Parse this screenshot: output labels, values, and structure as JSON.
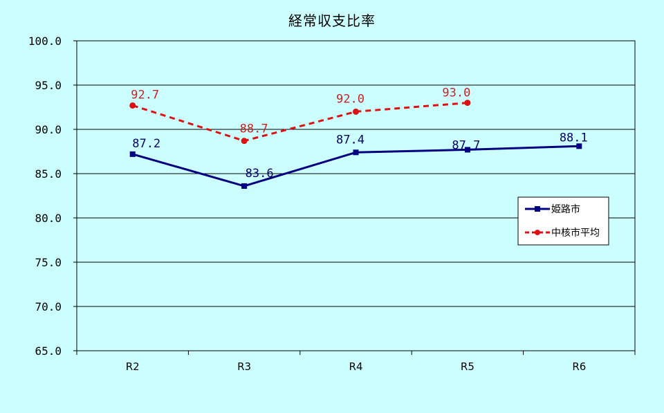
{
  "chart_data": {
    "type": "line",
    "title": "経常収支比率",
    "categories": [
      "R2",
      "R3",
      "R4",
      "R5",
      "R6"
    ],
    "y_ticks": [
      "65.0",
      "70.0",
      "75.0",
      "80.0",
      "85.0",
      "90.0",
      "95.0",
      "100.0"
    ],
    "ylim": [
      65,
      100
    ],
    "grid": true,
    "legend_position": "right",
    "series": [
      {
        "name": "姫路市",
        "values": [
          87.2,
          83.6,
          87.4,
          87.7,
          88.1
        ],
        "labels": [
          "87.2",
          "83.6",
          "87.4",
          "87.7",
          "88.1"
        ],
        "color": "#000080",
        "line_style": "solid",
        "marker": "square"
      },
      {
        "name": "中核市平均",
        "values": [
          92.7,
          88.7,
          92.0,
          93.0,
          null
        ],
        "labels": [
          "92.7",
          "88.7",
          "92.0",
          "93.0",
          null
        ],
        "color": "#dd1111",
        "line_style": "dashed",
        "marker": "circle"
      }
    ]
  }
}
